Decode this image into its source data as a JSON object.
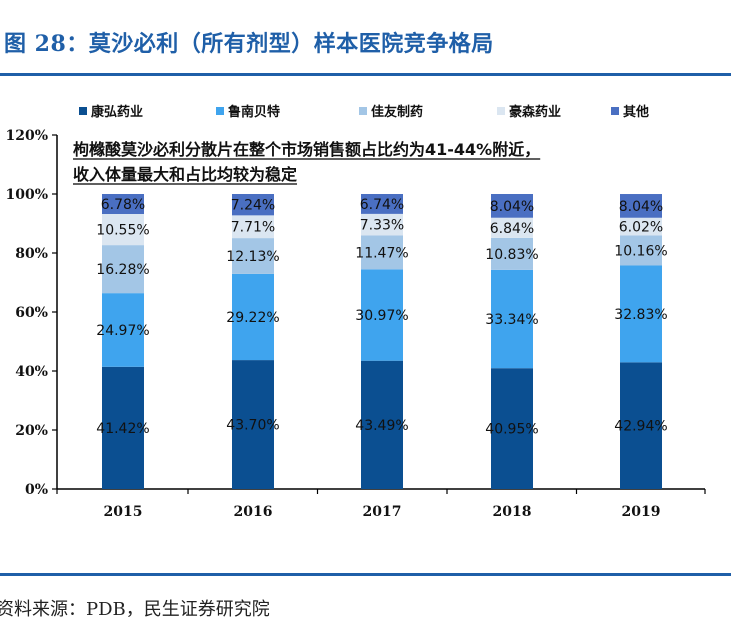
{
  "header": {
    "title": "图 28：莫沙必利（所有剂型）样本医院竞争格局"
  },
  "footer": {
    "source": "资料来源：PDB，民生证券研究院"
  },
  "chart_data": {
    "type": "bar",
    "stacked": true,
    "categories": [
      "2015",
      "2016",
      "2017",
      "2018",
      "2019"
    ],
    "series": [
      {
        "name": "康弘药业",
        "color": "#0b4f91",
        "values": [
          41.42,
          43.7,
          43.49,
          40.95,
          42.94
        ],
        "labels": [
          "41.42%",
          "43.70%",
          "43.49%",
          "40.95%",
          "42.94%"
        ]
      },
      {
        "name": "鲁南贝特",
        "color": "#3fa4ee",
        "values": [
          24.97,
          29.22,
          30.97,
          33.34,
          32.83
        ],
        "labels": [
          "24.97%",
          "29.22%",
          "30.97%",
          "33.34%",
          "32.83%"
        ]
      },
      {
        "name": "佳友制药",
        "color": "#a3c6e6",
        "values": [
          16.28,
          12.13,
          11.47,
          10.83,
          10.16
        ],
        "labels": [
          "16.28%",
          "12.13%",
          "11.47%",
          "10.83%",
          "10.16%"
        ]
      },
      {
        "name": "豪森药业",
        "color": "#dbe6f1",
        "values": [
          10.55,
          7.71,
          7.33,
          6.84,
          6.02
        ],
        "labels": [
          "10.55%",
          "7.71%",
          "7.33%",
          "6.84%",
          "6.02%"
        ]
      },
      {
        "name": "其他",
        "color": "#4a6fc2",
        "values": [
          6.78,
          7.24,
          6.74,
          8.04,
          8.04
        ],
        "labels": [
          "6.78%",
          "7.24%",
          "6.74%",
          "8.04%",
          "8.04%"
        ]
      }
    ],
    "ylim": [
      0,
      120
    ],
    "yticks": [
      "0%",
      "20%",
      "40%",
      "60%",
      "80%",
      "100%",
      "120%"
    ],
    "legend": "top",
    "grid": false,
    "annotation": [
      "枸橼酸莫沙必利分散片在整个市场销售额占比约为41-44%附近，",
      "收入体量最大和占比均较为稳定"
    ]
  }
}
